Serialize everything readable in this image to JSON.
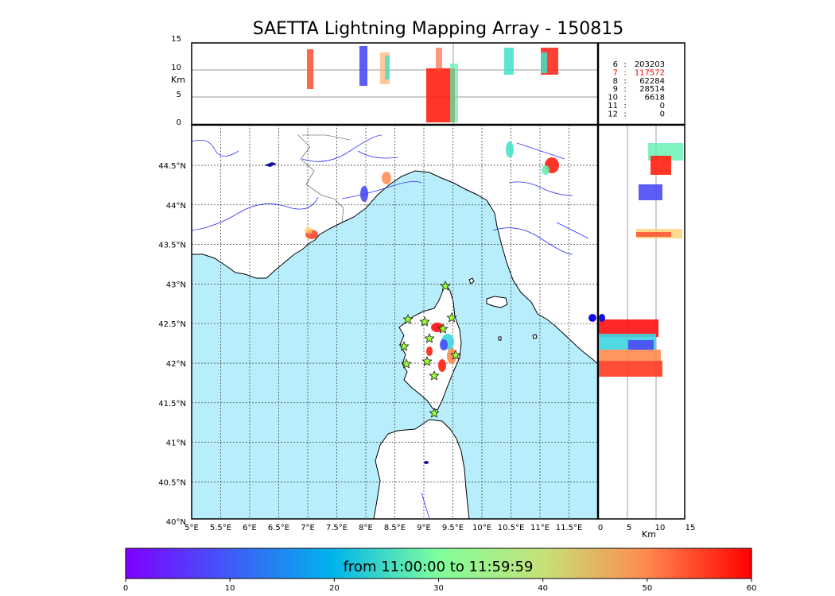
{
  "title": "SAETTA Lightning Mapping Array - 150815",
  "colorbar": {
    "label": "from 11:00:00 to 11:59:59",
    "ticks": [
      "0",
      "10",
      "20",
      "30",
      "40",
      "50",
      "60"
    ]
  },
  "top_panel": {
    "ylabel": "Km",
    "y_ticks": [
      "15",
      "10",
      "5",
      "0"
    ]
  },
  "right_panel": {
    "xlabel": "Km",
    "x_ticks": [
      "0",
      "5",
      "10",
      "15"
    ]
  },
  "map": {
    "lon_ticks": [
      "5°E",
      "5.5°E",
      "6°E",
      "6.5°E",
      "7°E",
      "7.5°E",
      "8°E",
      "8.5°E",
      "9°E",
      "9.5°E",
      "10°E",
      "10.5°E",
      "11°E",
      "11.5°E"
    ],
    "lat_ticks": [
      "44.5°N",
      "44°N",
      "43.5°N",
      "43°N",
      "42.5°N",
      "42°N",
      "41.5°N",
      "41°N",
      "40.5°N",
      "40°N"
    ]
  },
  "station_counts": [
    {
      "stations": "6",
      "count": "203203",
      "color": "#000000"
    },
    {
      "stations": "7",
      "count": "117572",
      "color": "#ff0000"
    },
    {
      "stations": "8",
      "count": "62284",
      "color": "#000000"
    },
    {
      "stations": "9",
      "count": "28514",
      "color": "#000000"
    },
    {
      "stations": "10",
      "count": "6618",
      "color": "#000000"
    },
    {
      "stations": "11",
      "count": "0",
      "color": "#000000"
    },
    {
      "stations": "12",
      "count": "0",
      "color": "#000000"
    }
  ],
  "colors": {
    "sea": "#b8eefc",
    "coast": "#000000",
    "river": "#3030ff",
    "station_marker": "#9cff3a"
  }
}
